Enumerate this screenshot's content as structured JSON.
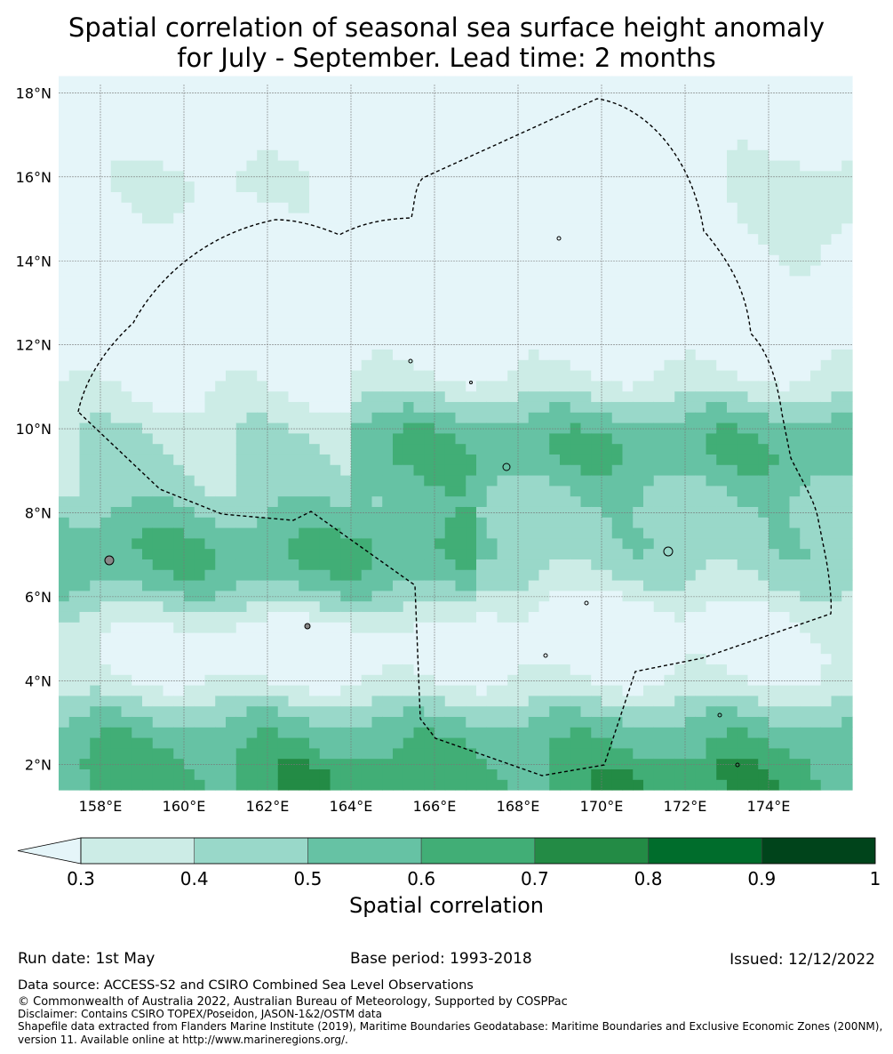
{
  "title": {
    "line1": "Spatial correlation of seasonal sea surface height anomaly",
    "line2": "for July - September. Lead time: 2 months"
  },
  "map": {
    "lon_range": [
      157,
      176
    ],
    "lat_range": [
      1.4,
      18.2
    ],
    "lon_ticks": [
      "158°E",
      "160°E",
      "162°E",
      "164°E",
      "166°E",
      "168°E",
      "170°E",
      "172°E",
      "174°E"
    ],
    "lat_ticks": [
      "2°N",
      "4°N",
      "6°N",
      "8°N",
      "10°N",
      "12°N",
      "14°N",
      "16°N",
      "18°N"
    ],
    "grid": true,
    "boundary_style": "dashed black",
    "field_description": "low correlation in north, bands of high correlation near 7°N and 2°N"
  },
  "chart_data": {
    "type": "heatmap",
    "title": "Spatial correlation of seasonal sea surface height anomaly for July - September. Lead time: 2 months",
    "colorbar": {
      "label": "Spatial correlation",
      "ticks": [
        "0.3",
        "0.4",
        "0.5",
        "0.6",
        "0.7",
        "0.8",
        "0.9",
        "1"
      ],
      "bins": [
        {
          "range": "<0.3",
          "color": "#e5f5f9"
        },
        {
          "range": "0.3-0.4",
          "color": "#ccece6"
        },
        {
          "range": "0.4-0.5",
          "color": "#99d8c9"
        },
        {
          "range": "0.5-0.6",
          "color": "#66c2a4"
        },
        {
          "range": "0.6-0.7",
          "color": "#41ae76"
        },
        {
          "range": "0.7-0.8",
          "color": "#238b45"
        },
        {
          "range": "0.8-0.9",
          "color": "#006d2c"
        },
        {
          "range": "0.9-1",
          "color": "#00441b"
        }
      ],
      "extend": "min"
    }
  },
  "footer": {
    "run_date": "Run date: 1st May",
    "base_period": "Base period: 1993-2018",
    "issued": "Issued: 12/12/2022",
    "data_source": "Data source: ACCESS-S2 and CSIRO Combined Sea Level Observations",
    "copyright": "© Commonwealth of Australia 2022, Australian Bureau of Meteorology, Supported by COSPPac",
    "disclaimer": "Disclaimer: Contains CSIRO TOPEX/Poseidon, JASON-1&2/OSTM data",
    "shapefile": "Shapefile data extracted from Flanders Marine Institute (2019), Maritime Boundaries Geodatabase: Maritime Boundaries and Exclusive Economic Zones (200NM), version 11. Available online at http://www.marineregions.org/."
  }
}
